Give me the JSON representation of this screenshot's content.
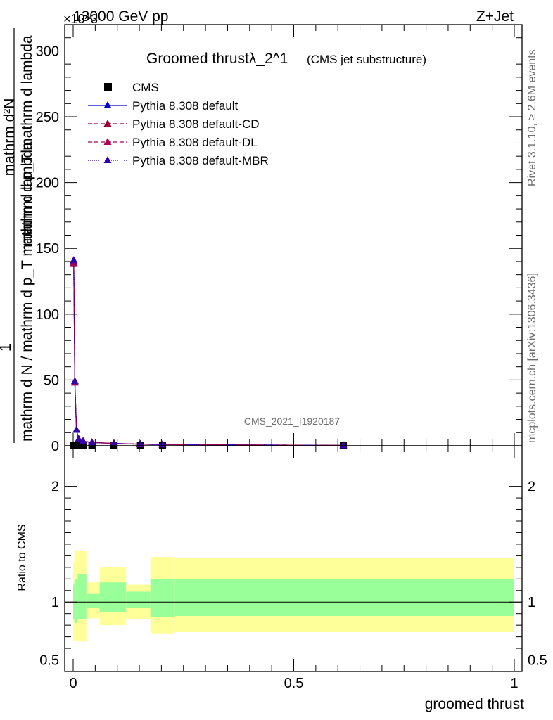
{
  "header": {
    "energy_label": "13000 GeV pp",
    "process_label": "Z+Jet",
    "exponent_label": "×10^3"
  },
  "side": {
    "rivet_label": "Rivet 3.1.10, ≥ 2.6M events",
    "mcplots_label": "mcplots.cern.ch [arXiv:1306.3436]"
  },
  "chart_data": [
    {
      "type": "line",
      "title": "Groomed thrustλ_2^1",
      "subtitle": "(CMS jet substructure)",
      "analysis_tag": "CMS_2021_I1920187",
      "ylabel_numerator": "1",
      "ylabel_denominator": "mathrm d N / mathrm d p_T mathrm d lambda",
      "ylabel_inner": "mathrm d²N",
      "ylabel_inner_denominator": "mathrm d p_T mathrm d lambda",
      "xlim": [
        0,
        1
      ],
      "ylim": [
        0,
        320
      ],
      "y_ticks": [
        "0",
        "50",
        "100",
        "150",
        "200",
        "250",
        "300"
      ],
      "legend_position": "top-left",
      "series": [
        {
          "name": "CMS",
          "marker": "square",
          "color": "#000000",
          "x": [
            0.0013,
            0.0038,
            0.0075,
            0.0125,
            0.0225,
            0.0425,
            0.0925,
            0.1525,
            0.2025,
            0.6125
          ],
          "y": [
            0.3,
            0.3,
            0.3,
            0.3,
            0.3,
            0.3,
            0.3,
            0.3,
            0.3,
            0.3
          ]
        },
        {
          "name": "Pythia 8.308 default",
          "marker": "triangle",
          "color": "#0000cc",
          "dash": "solid",
          "x": [
            0.0013,
            0.0038,
            0.0075,
            0.0125,
            0.0225,
            0.0425,
            0.0925,
            0.1525,
            0.2025,
            0.6125
          ],
          "y": [
            140,
            48,
            12,
            5,
            3.5,
            2.5,
            1.8,
            1.2,
            0.9,
            0.3
          ]
        },
        {
          "name": "Pythia 8.308 default-CD",
          "marker": "triangle",
          "color": "#990033",
          "dash": "6,3",
          "x": [
            0.0013,
            0.0038,
            0.0075,
            0.0125,
            0.0225,
            0.0425,
            0.0925,
            0.1525,
            0.2025,
            0.6125
          ],
          "y": [
            138,
            48,
            12,
            5,
            3.5,
            2.5,
            1.8,
            1.2,
            0.9,
            0.3
          ]
        },
        {
          "name": "Pythia 8.308 default-DL",
          "marker": "triangle",
          "color": "#aa0055",
          "dash": "6,3",
          "x": [
            0.0013,
            0.0038,
            0.0075,
            0.0125,
            0.0225,
            0.0425,
            0.0925,
            0.1525,
            0.2025,
            0.6125
          ],
          "y": [
            139,
            48,
            12,
            5,
            3.5,
            2.5,
            1.8,
            1.2,
            0.9,
            0.3
          ]
        },
        {
          "name": "Pythia 8.308 default-MBR",
          "marker": "triangle",
          "color": "#3300aa",
          "dash": "1,2",
          "x": [
            0.0013,
            0.0038,
            0.0075,
            0.0125,
            0.0225,
            0.0425,
            0.0925,
            0.1525,
            0.2025,
            0.6125
          ],
          "y": [
            141,
            49,
            12,
            5,
            3.5,
            2.5,
            1.8,
            1.2,
            0.9,
            0.3
          ]
        }
      ]
    },
    {
      "type": "area",
      "ylabel": "Ratio to CMS",
      "xlabel": "groomed thrust",
      "xlim": [
        0,
        1
      ],
      "ylim": [
        0.4,
        2.35
      ],
      "y_ticks": [
        {
          "value": 0.5,
          "label": "0.5"
        },
        {
          "value": 1,
          "label": "1"
        },
        {
          "value": 2,
          "label": "2"
        }
      ],
      "x_ticks": [
        {
          "value": 0,
          "label": "0"
        },
        {
          "value": 0.5,
          "label": "0.5"
        },
        {
          "value": 1,
          "label": "1"
        }
      ],
      "band_colors": {
        "inner": "#99ff99",
        "outer": "#ffff99"
      },
      "bands": [
        {
          "x0": 0.0,
          "x1": 0.0025,
          "outer": [
            0.66,
            1.35
          ],
          "inner": [
            0.85,
            1.15
          ]
        },
        {
          "x0": 0.0025,
          "x1": 0.005,
          "outer": [
            0.66,
            1.42
          ],
          "inner": [
            0.83,
            1.17
          ]
        },
        {
          "x0": 0.005,
          "x1": 0.01,
          "outer": [
            0.67,
            1.45
          ],
          "inner": [
            0.82,
            1.2
          ]
        },
        {
          "x0": 0.01,
          "x1": 0.015,
          "outer": [
            0.66,
            1.44
          ],
          "inner": [
            0.85,
            1.24
          ]
        },
        {
          "x0": 0.015,
          "x1": 0.03,
          "outer": [
            0.66,
            1.44
          ],
          "inner": [
            0.85,
            1.24
          ]
        },
        {
          "x0": 0.03,
          "x1": 0.06,
          "outer": [
            0.86,
            1.17
          ],
          "inner": [
            0.95,
            1.07
          ]
        },
        {
          "x0": 0.06,
          "x1": 0.12,
          "outer": [
            0.8,
            1.3
          ],
          "inner": [
            0.91,
            1.17
          ]
        },
        {
          "x0": 0.12,
          "x1": 0.175,
          "outer": [
            0.85,
            1.15
          ],
          "inner": [
            0.95,
            1.09
          ]
        },
        {
          "x0": 0.175,
          "x1": 0.23,
          "outer": [
            0.73,
            1.39
          ],
          "inner": [
            0.87,
            1.2
          ]
        },
        {
          "x0": 0.23,
          "x1": 1.0,
          "outer": [
            0.74,
            1.38
          ],
          "inner": [
            0.88,
            1.2
          ]
        }
      ],
      "reference_line": 1
    }
  ]
}
